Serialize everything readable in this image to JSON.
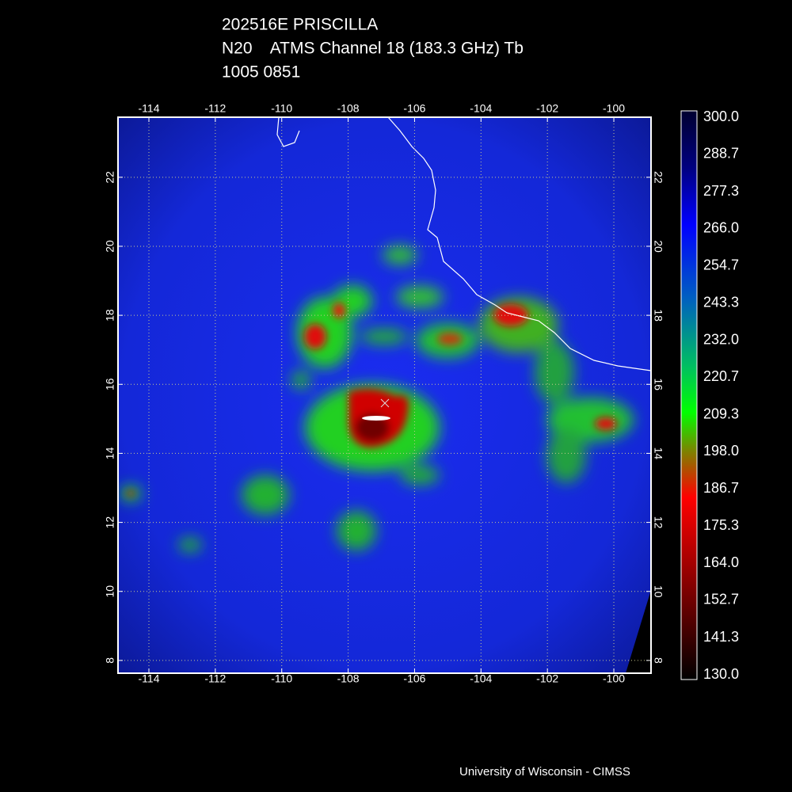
{
  "header": {
    "title": "202516E PRISCILLA",
    "subtitle": "N20    ATMS Channel 18 (183.3 GHz) Tb",
    "time": "1005 0851"
  },
  "map": {
    "lonlim": [
      -114.93,
      -98.88
    ],
    "latlim": [
      7.63,
      23.74
    ],
    "lon_ticks": [
      -114,
      -112,
      -110,
      -108,
      -106,
      -104,
      -102,
      -100
    ],
    "lat_ticks": [
      8,
      10,
      12,
      14,
      16,
      18,
      20,
      22
    ],
    "grid": true
  },
  "colorbar": {
    "clim": [
      130,
      300
    ],
    "ticks": [
      {
        "value": 300,
        "label": "300.0"
      },
      {
        "value": 288.7,
        "label": "288.7"
      },
      {
        "value": 277.3,
        "label": "277.3"
      },
      {
        "value": 266,
        "label": "266.0"
      },
      {
        "value": 254.7,
        "label": "254.7"
      },
      {
        "value": 243.3,
        "label": "243.3"
      },
      {
        "value": 232,
        "label": "232.0"
      },
      {
        "value": 220.7,
        "label": "220.7"
      },
      {
        "value": 209.3,
        "label": "209.3"
      },
      {
        "value": 198,
        "label": "198.0"
      },
      {
        "value": 186.7,
        "label": "186.7"
      },
      {
        "value": 175.3,
        "label": "175.3"
      },
      {
        "value": 164,
        "label": "164.0"
      },
      {
        "value": 152.7,
        "label": "152.7"
      },
      {
        "value": 141.3,
        "label": "141.3"
      },
      {
        "value": 130,
        "label": "130.0"
      }
    ]
  },
  "footer": {
    "credit": "University of Wisconsin - CIMSS"
  }
}
